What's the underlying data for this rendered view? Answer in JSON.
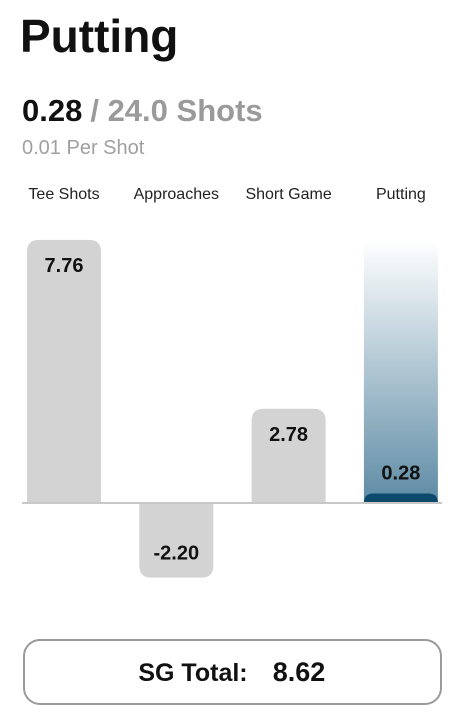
{
  "header": {
    "title": "Putting",
    "strokes": "0.28",
    "shots": "/ 24.0 Shots",
    "per_shot": "0.01 Per Shot"
  },
  "chart_data": {
    "type": "bar",
    "categories": [
      "Tee Shots",
      "Approaches",
      "Short Game",
      "Putting"
    ],
    "values": [
      7.76,
      -2.2,
      2.78,
      0.28
    ],
    "value_labels": [
      "7.76",
      "-2.20",
      "2.78",
      "0.28"
    ],
    "color": "#d3d3d3",
    "highlight_color": "#0b4a6b",
    "highlight_index": 3
  },
  "footer": {
    "label": "SG Total:",
    "value": "8.62"
  }
}
